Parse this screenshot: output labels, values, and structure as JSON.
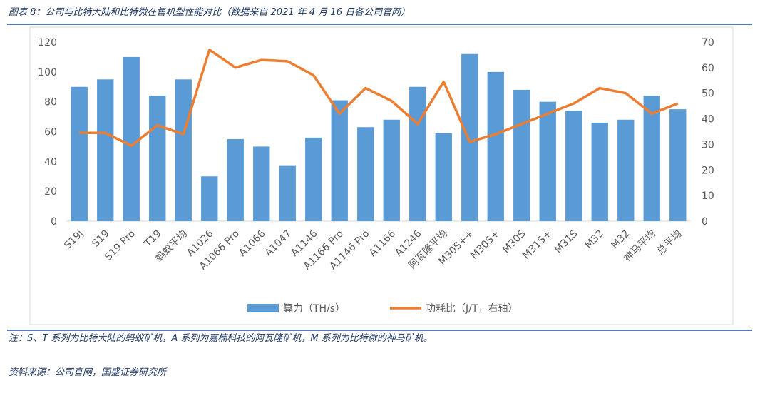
{
  "title": "图表 8：公司与比特大陆和比特微在售机型性能对比（数据来自 2021 年 4 月 16 日各公司官网）",
  "note": "注：S、T 系列为比特大陆的蚂蚁矿机，A 系列为嘉楠科技的阿瓦隆矿机，M 系列为比特微的神马矿机。",
  "source": "资料来源：公司官网，国盛证券研究所",
  "chart_data": {
    "type": "bar_line",
    "categories": [
      "S19j",
      "S19",
      "S19 Pro",
      "T19",
      "蚂蚁平均",
      "A1026",
      "A1066 Pro",
      "A1066",
      "A1047",
      "A1146",
      "A1166 Pro",
      "A1146 Pro",
      "A1166",
      "A1246",
      "阿瓦隆平均",
      "M30S++",
      "M30S+",
      "M30S",
      "M31S+",
      "M31S",
      "M32",
      "M32",
      "神马平均",
      "总平均"
    ],
    "series": [
      {
        "name": "算力（TH/s）",
        "type": "bar",
        "color": "#5b9bd5",
        "axis": "y",
        "values": [
          90,
          95,
          110,
          84,
          95,
          30,
          55,
          50,
          37,
          56,
          81,
          63,
          68,
          90,
          59,
          112,
          100,
          88,
          80,
          74,
          66,
          68,
          84,
          75
        ]
      },
      {
        "name": "功耗比（J/T，右轴）",
        "type": "line",
        "color": "#ed7d31",
        "axis": "y2",
        "values": [
          34.5,
          34.5,
          29.5,
          37.5,
          34,
          67,
          60,
          63,
          62.5,
          57,
          42,
          52,
          47,
          38,
          54.5,
          31,
          34,
          38,
          42,
          46,
          52,
          50,
          42,
          46
        ]
      }
    ],
    "ylim": [
      0,
      120
    ],
    "yticks": [
      0,
      20,
      40,
      60,
      80,
      100,
      120
    ],
    "y2lim": [
      0,
      70
    ],
    "y2ticks": [
      0,
      10,
      20,
      30,
      40,
      50,
      60,
      70
    ],
    "legend": "bottom"
  }
}
